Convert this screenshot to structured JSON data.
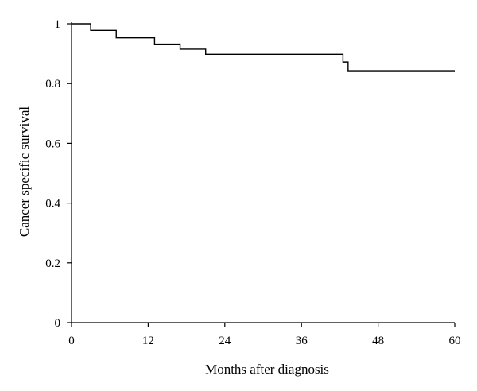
{
  "chart_data": {
    "type": "line",
    "step": true,
    "title": "",
    "xlabel": "Months after diagnosis",
    "ylabel": "Cancer specific survival",
    "xlim": [
      0,
      60
    ],
    "ylim": [
      0,
      1
    ],
    "xticks": [
      0,
      12,
      24,
      36,
      48,
      60
    ],
    "yticks": [
      0,
      0.2,
      0.4,
      0.6,
      0.8,
      1
    ],
    "xtick_labels": [
      "0",
      "12",
      "24",
      "36",
      "48",
      "60"
    ],
    "ytick_labels": [
      "0",
      "0.2",
      "0.4",
      "0.6",
      "0.8",
      "1"
    ],
    "grid": false,
    "series": [
      {
        "color": "#000000",
        "x": [
          0,
          3,
          7,
          13,
          17,
          21,
          42.5,
          43.3,
          60
        ],
        "y": [
          1.0,
          0.978,
          0.953,
          0.932,
          0.915,
          0.898,
          0.872,
          0.843,
          0.843
        ]
      }
    ]
  }
}
